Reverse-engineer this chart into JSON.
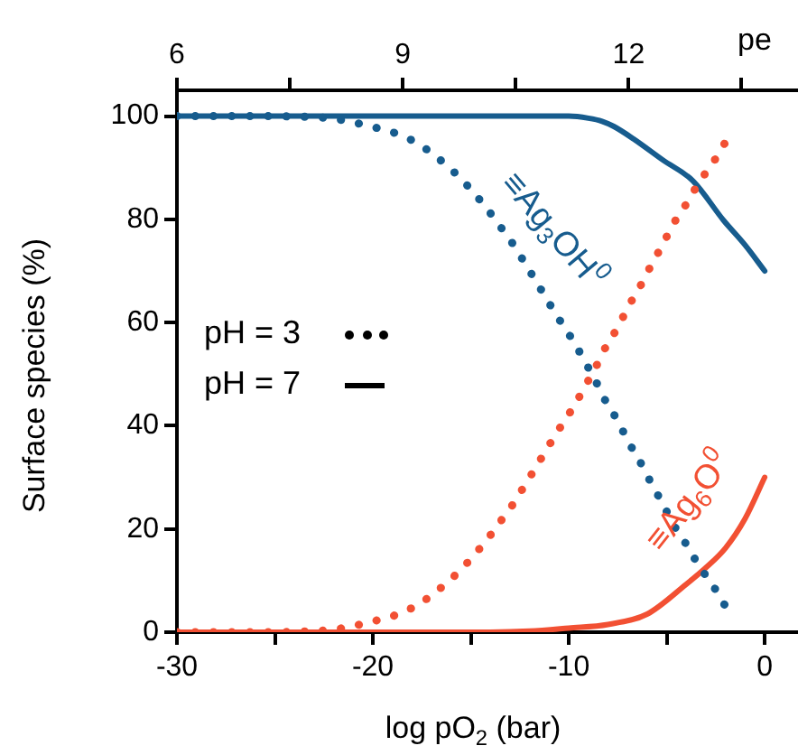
{
  "chart_data": {
    "type": "line",
    "xlabel": "log pO$_{2}$ (bar)",
    "ylabel": "Surface species (%)",
    "x2label": "pe",
    "xlim": [
      -30,
      1.7
    ],
    "xticks": [
      -30,
      {
        "value": -25,
        "label": null
      },
      -20,
      {
        "value": -15,
        "label": null
      },
      -10,
      {
        "value": -5,
        "label": null
      },
      0
    ],
    "x2lim": [
      6,
      14.25
    ],
    "x2ticks": [
      6,
      {
        "value": 7.5,
        "label": null
      },
      9,
      {
        "value": 10.5,
        "label": null
      },
      12,
      {
        "value": 13.5,
        "label": null
      }
    ],
    "ylim": [
      0,
      105
    ],
    "yticks": [
      0,
      20,
      40,
      60,
      80,
      100
    ],
    "grid": false,
    "series": [
      {
        "color": "#175c8e",
        "line_style": "dotted",
        "x": [
          -30,
          -29,
          -28,
          -27,
          -26,
          -25,
          -24,
          -23,
          -22,
          -21,
          -20,
          -19,
          -18,
          -17.2,
          -16.4,
          -15.7,
          -15,
          -14.4,
          -13.8,
          -13.25,
          -12.7,
          -12.2,
          -11.7,
          -11.2,
          -10.7,
          -10.2,
          -9.65,
          -9.2,
          -8.7,
          -8.3,
          -7.8,
          -7.35,
          -6.9,
          -6.4,
          -5.95,
          -5.5,
          -5.05,
          -4.6,
          -4.05,
          -3.55,
          -3.05,
          -2.5,
          -2
        ],
        "values": [
          100,
          100,
          100,
          100,
          100,
          100,
          99.9,
          99.8,
          99.5,
          98.8,
          97.9,
          96.9,
          95.3,
          93.4,
          91,
          88.6,
          85.8,
          83.1,
          80.2,
          77.3,
          74.4,
          71.2,
          68.2,
          65,
          61.9,
          58.9,
          55.7,
          52.5,
          49.3,
          46,
          42.9,
          39.8,
          36.5,
          33.3,
          30,
          26.9,
          23.7,
          20.5,
          17.3,
          14.1,
          11.2,
          8.2,
          5
        ]
      },
      {
        "color": "#f25033",
        "line_style": "dotted",
        "x": [
          -30,
          -29,
          -28,
          -27,
          -26,
          -25,
          -24,
          -23,
          -22,
          -21,
          -20,
          -19,
          -18,
          -17.2,
          -16.4,
          -15.7,
          -15,
          -14.4,
          -13.8,
          -13.25,
          -12.7,
          -12.2,
          -11.7,
          -11.2,
          -10.7,
          -10.2,
          -9.65,
          -9.2,
          -8.7,
          -8.3,
          -7.8,
          -7.35,
          -6.9,
          -6.4,
          -5.95,
          -5.5,
          -5.05,
          -4.6,
          -4.05,
          -3.55,
          -3.05,
          -2.5,
          -2
        ],
        "values": [
          0,
          0,
          0,
          0,
          0,
          0,
          0.1,
          0.2,
          0.5,
          1.2,
          2.1,
          3.1,
          4.7,
          6.6,
          9,
          11.4,
          14.2,
          16.9,
          19.8,
          22.7,
          25.6,
          28.8,
          31.8,
          35,
          38.1,
          41.1,
          44.3,
          47.5,
          50.7,
          54,
          57.1,
          60.2,
          63.5,
          66.7,
          70,
          73.1,
          76.3,
          79.5,
          82.7,
          85.9,
          88.8,
          91.8,
          95
        ]
      },
      {
        "color": "#175c8e",
        "line_style": "solid",
        "x": [
          -30,
          -20,
          -14,
          -12,
          -10,
          -9,
          -8.3,
          -7.7,
          -6.7,
          -5.2,
          -3.65,
          -2.1,
          -1,
          0
        ],
        "values": [
          100,
          100,
          100,
          100,
          100,
          99.6,
          99,
          98,
          95.6,
          91.5,
          87.4,
          79.8,
          75,
          70
        ]
      },
      {
        "color": "#f25033",
        "line_style": "solid",
        "x": [
          -30,
          -20,
          -14,
          -12,
          -10,
          -8,
          -6,
          -4,
          -3,
          -2,
          -1,
          0
        ],
        "values": [
          0,
          0,
          0,
          0.2,
          0.8,
          1.5,
          3.5,
          9.3,
          12.5,
          16.3,
          22,
          30
        ]
      }
    ],
    "annotations": [
      "≡Ag$_{3}$OH$^{0}$",
      "≡Ag$_{6}$O$^{0}$",
      "pH = 3",
      "pH = 7"
    ]
  }
}
